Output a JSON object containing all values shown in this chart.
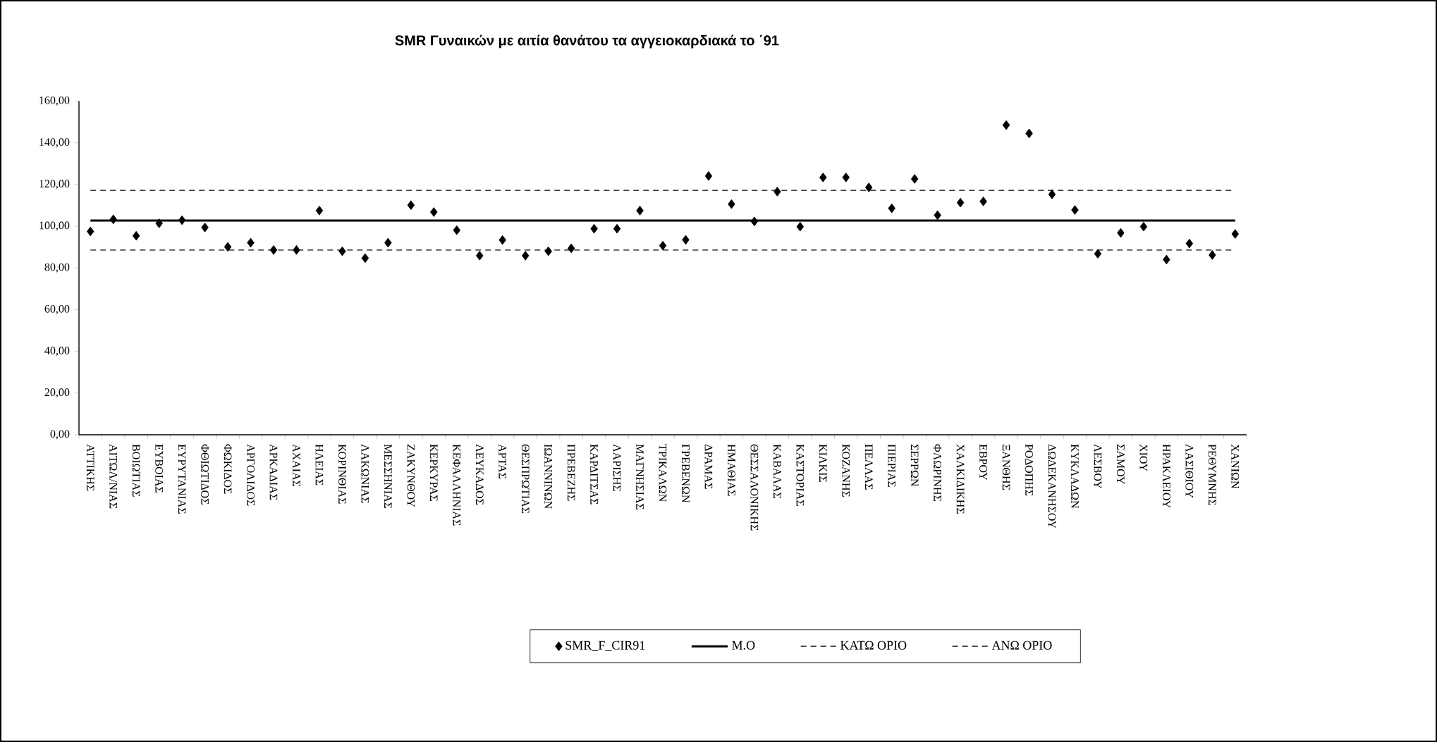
{
  "chart_data": {
    "type": "scatter",
    "title": "SMR Γυναικών με αιτία θανάτου τα αγγειοκαρδιακά το ΄91",
    "categories": [
      "ΑΤΤΙΚΗΣ",
      "ΑΙΤΩΛ/ΝΙΑΣ",
      "ΒΟΙΩΤΙΑΣ",
      "ΕΥΒΟΙΑΣ",
      "ΕΥΡΥΤΑΝΙΑΣ",
      "ΦΘΙΩΤΙΔΟΣ",
      "ΦΩΚΙΔΟΣ",
      "ΑΡΓΟΛΙΔΟΣ",
      "ΑΡΚΑΔΙΑΣ",
      "ΑΧΑΙΑΣ",
      "ΗΛΕΙΑΣ",
      "ΚΟΡΙΝΘΙΑΣ",
      "ΛΑΚΩΝΙΑΣ",
      "ΜΕΣΣΗΝΙΑΣ",
      "ΖΑΚΥΝΘΟΥ",
      "ΚΕΡΚΥΡΑΣ",
      "ΚΕΦΑΛΛΗΝΙΑΣ",
      "ΛΕΥΚΑΔΟΣ",
      "ΑΡΤΑΣ",
      "ΘΕΣΠΡΩΤΙΑΣ",
      "ΙΩΑΝΝΙΝΩΝ",
      "ΠΡΕΒΕΖΗΣ",
      "ΚΑΡΔΙΤΣΑΣ",
      "ΛΑΡΙΣΗΣ",
      "ΜΑΓΝΗΣΙΑΣ",
      "ΤΡΙΚΑΛΩΝ",
      "ΓΡΕΒΕΝΩΝ",
      "ΔΡΑΜΑΣ",
      "ΗΜΑΘΙΑΣ",
      "ΘΕΣΣΑΛΟΝΙΚΗΣ",
      "ΚΑΒΑΛΑΣ",
      "ΚΑΣΤΟΡΙΑΣ",
      "ΚΙΛΚΙΣ",
      "ΚΟΖΑΝΗΣ",
      "ΠΕΛΛΑΣ",
      "ΠΙΕΡΙΑΣ",
      "ΣΕΡΡΩΝ",
      "ΦΛΩΡΙΝΗΣ",
      "ΧΑΛΚΙΔΙΚΗΣ",
      "ΕΒΡΟΥ",
      "ΞΑΝΘΗΣ",
      "ΡΟΔΟΠΗΣ",
      "ΔΩΔΕΚΑΝΗΣΟΥ",
      "ΚΥΚΛΑΔΩΝ",
      "ΛΕΣΒΟΥ",
      "ΣΑΜΟΥ",
      "ΧΙΟΥ",
      "ΗΡΑΚΛΕΙΟΥ",
      "ΛΑΣΙΘΙΟΥ",
      "ΡΕΘΥΜΝΗΣ",
      "ΧΑΝΙΩΝ"
    ],
    "series": [
      {
        "name": "SMR_F_CIR91",
        "color": "#000000",
        "values": [
          97.5,
          103.3,
          95.4,
          101.4,
          102.9,
          99.4,
          90.1,
          92.1,
          88.6,
          88.6,
          107.5,
          88.0,
          84.7,
          92.1,
          110.1,
          106.8,
          98.1,
          85.9,
          93.4,
          85.9,
          88.0,
          89.4,
          98.8,
          98.8,
          107.5,
          90.7,
          93.5,
          124.1,
          110.6,
          102.3,
          116.6,
          99.8,
          123.4,
          123.4,
          118.6,
          108.6,
          122.7,
          105.3,
          111.3,
          111.9,
          148.5,
          144.5,
          115.3,
          107.8,
          86.8,
          96.8,
          99.8,
          84.0,
          91.7,
          86.2,
          96.3
        ]
      }
    ],
    "ylim": [
      0,
      160
    ],
    "yticks": [
      {
        "value": 0,
        "label": "0,00"
      },
      {
        "value": 20,
        "label": "20,00"
      },
      {
        "value": 40,
        "label": "40,00"
      },
      {
        "value": 60,
        "label": "60,00"
      },
      {
        "value": 80,
        "label": "80,00"
      },
      {
        "value": 100,
        "label": "100,00"
      },
      {
        "value": 120,
        "label": "120,00"
      },
      {
        "value": 140,
        "label": "140,00"
      },
      {
        "value": 160,
        "label": "160,00"
      }
    ],
    "ref_lines": [
      {
        "axis": "y",
        "value": 102.7,
        "label": "Μ.Ο",
        "color": "#000000",
        "line_style": "solid"
      },
      {
        "axis": "y",
        "value": 88.6,
        "label": "ΚΑΤΩ ΟΡΙΟ",
        "color": "#000000",
        "line_style": "dashed"
      },
      {
        "axis": "y",
        "value": 117.2,
        "label": "ΑΝΩ ΟΡΙΟ",
        "color": "#000000",
        "line_style": "dashed"
      }
    ],
    "legend": "bottom",
    "marker": "diamond"
  }
}
